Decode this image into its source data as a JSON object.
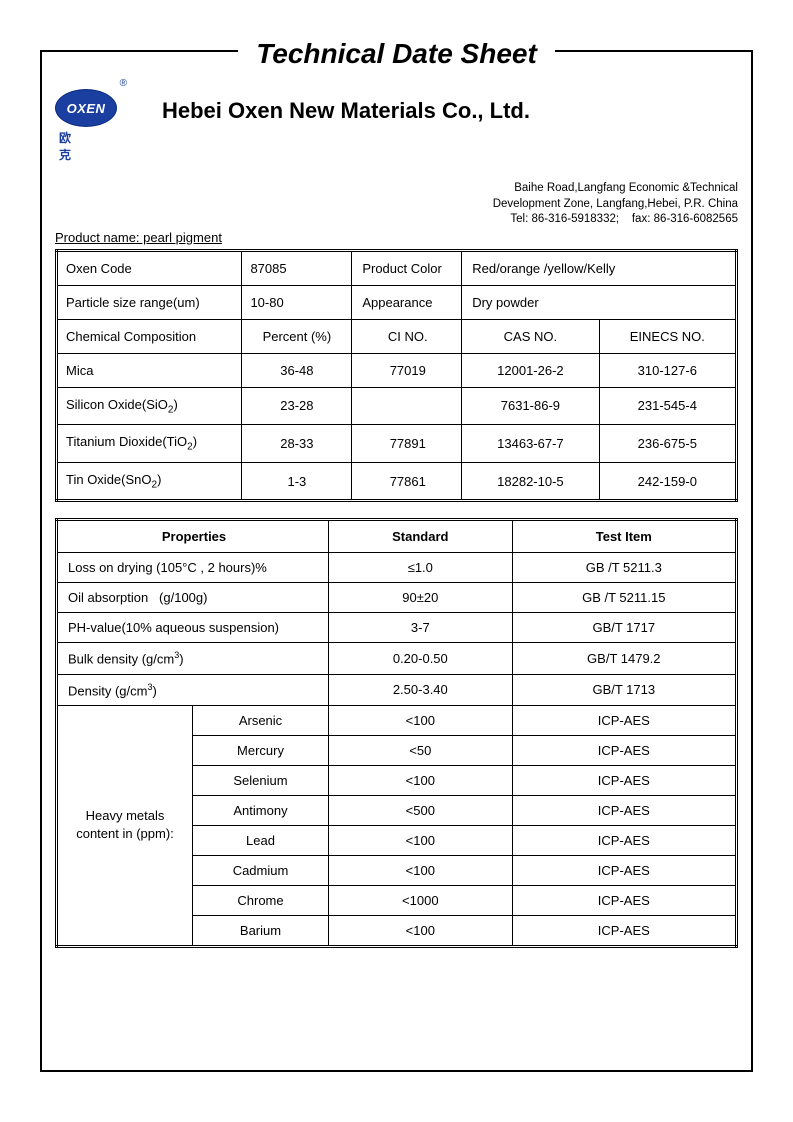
{
  "doc_title": "Technical Date Sheet",
  "logo": {
    "text": "OXEN",
    "reg": "®",
    "cn": "欧  克"
  },
  "company": "Hebei Oxen New Materials Co., Ltd.",
  "address": {
    "l1": "Baihe Road,Langfang Economic &Technical",
    "l2": "Development Zone, Langfang,Hebei, P.R. China",
    "l3": "Tel: 86-316-5918332;    fax: 86-316-6082565"
  },
  "product_name_label": "Product name: pearl pigment",
  "t1": {
    "r1": {
      "a": "Oxen Code",
      "b": "87085",
      "c": "Product Color",
      "d": "Red/orange /yellow/Kelly"
    },
    "r2": {
      "a": "Particle size range(um)",
      "b": "10-80",
      "c": "Appearance",
      "d": "Dry powder"
    },
    "r3": {
      "a": "Chemical Composition",
      "b": "Percent (%)",
      "c": "CI NO.",
      "d": "CAS NO.",
      "e": "EINECS NO."
    },
    "rows": [
      {
        "a": "Mica",
        "b": "36-48",
        "c": "77019",
        "d": "12001-26-2",
        "e": "310-127-6"
      },
      {
        "a": "Silicon Oxide(SiO",
        "sub": "2",
        "a2": ")",
        "b": "23-28",
        "c": "",
        "d": "7631-86-9",
        "e": "231-545-4"
      },
      {
        "a": "Titanium Dioxide(TiO",
        "sub": "2",
        "a2": ")",
        "b": "28-33",
        "c": "77891",
        "d": "13463-67-7",
        "e": "236-675-5"
      },
      {
        "a": "Tin Oxide(SnO",
        "sub": "2",
        "a2": ")",
        "b": "1-3",
        "c": "77861",
        "d": "18282-10-5",
        "e": "242-159-0"
      }
    ]
  },
  "t2": {
    "head": {
      "p": "Properties",
      "s": "Standard",
      "t": "Test Item"
    },
    "rows": [
      {
        "p": "Loss on drying (105°C , 2 hours)%",
        "s": "≤1.0",
        "t": "GB /T 5211.3"
      },
      {
        "p": "Oil absorption   (g/100g)",
        "s": "90±20",
        "t": "GB /T 5211.15"
      },
      {
        "p": "PH-value(10% aqueous suspension)",
        "s": "3-7",
        "t": "GB/T 1717"
      },
      {
        "p": "Bulk density (g/cm",
        "sup": "3",
        "p2": ")",
        "s": "0.20-0.50",
        "t": "GB/T 1479.2"
      },
      {
        "p": "Density (g/cm",
        "sup": "3",
        "p2": ")",
        "s": "2.50-3.40",
        "t": "GB/T 1713"
      }
    ],
    "hm_label": "Heavy metals content in (ppm):",
    "hm": [
      {
        "n": "Arsenic",
        "s": "<100",
        "t": "ICP-AES"
      },
      {
        "n": "Mercury",
        "s": "<50",
        "t": "ICP-AES"
      },
      {
        "n": "Selenium",
        "s": "<100",
        "t": "ICP-AES"
      },
      {
        "n": "Antimony",
        "s": "<500",
        "t": "ICP-AES"
      },
      {
        "n": "Lead",
        "s": "<100",
        "t": "ICP-AES"
      },
      {
        "n": "Cadmium",
        "s": "<100",
        "t": "ICP-AES"
      },
      {
        "n": "Chrome",
        "s": "<1000",
        "t": "ICP-AES"
      },
      {
        "n": "Barium",
        "s": "<100",
        "t": "ICP-AES"
      }
    ]
  }
}
